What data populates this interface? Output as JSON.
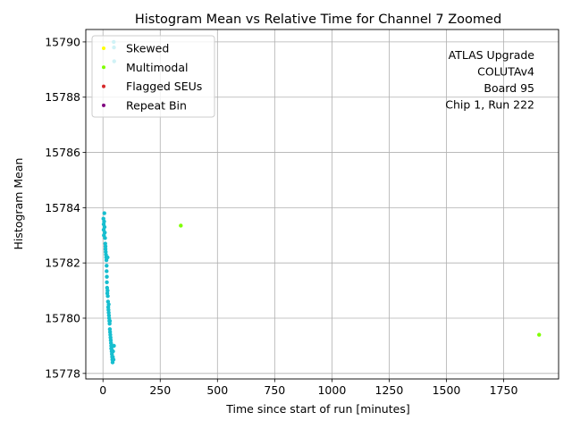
{
  "chart_data": {
    "type": "scatter",
    "title": "Histogram Mean vs Relative Time for Channel 7 Zoomed",
    "xlabel": "Time since start of run [minutes]",
    "ylabel": "Histogram Mean",
    "xlim": [
      -75,
      1990
    ],
    "ylim": [
      15777.8,
      15790.45
    ],
    "xticks": [
      0,
      250,
      500,
      750,
      1000,
      1250,
      1500,
      1750
    ],
    "yticks": [
      15778,
      15780,
      15782,
      15784,
      15786,
      15788,
      15790
    ],
    "grid": true,
    "legend_position": "top-left",
    "annotation": [
      "ATLAS Upgrade",
      "COLUTAv4",
      "Board 95",
      "Chip 1, Run 222"
    ],
    "colors": {
      "normal": "#17becf",
      "skewed": "#ffff00",
      "multimodal": "#7fff00",
      "flagged": "#d62728",
      "repeat": "#800080"
    },
    "series": [
      {
        "name": "Normal",
        "color": "#17becf",
        "points": [
          [
            2,
            15783.6
          ],
          [
            3,
            15783.4
          ],
          [
            3,
            15783.2
          ],
          [
            4,
            15783.0
          ],
          [
            5,
            15783.5
          ],
          [
            6,
            15783.8
          ],
          [
            7,
            15783.3
          ],
          [
            8,
            15783.1
          ],
          [
            9,
            15782.9
          ],
          [
            10,
            15782.7
          ],
          [
            11,
            15782.5
          ],
          [
            11,
            15782.6
          ],
          [
            12,
            15782.4
          ],
          [
            13,
            15782.3
          ],
          [
            14,
            15782.2
          ],
          [
            15,
            15782.1
          ],
          [
            16,
            15781.9
          ],
          [
            16,
            15781.7
          ],
          [
            17,
            15781.5
          ],
          [
            17,
            15781.3
          ],
          [
            18,
            15781.1
          ],
          [
            19,
            15780.9
          ],
          [
            20,
            15781.0
          ],
          [
            21,
            15780.8
          ],
          [
            22,
            15780.6
          ],
          [
            23,
            15780.4
          ],
          [
            24,
            15780.3
          ],
          [
            25,
            15780.2
          ],
          [
            26,
            15780.1
          ],
          [
            27,
            15780.0
          ],
          [
            28,
            15779.9
          ],
          [
            29,
            15779.8
          ],
          [
            30,
            15779.6
          ],
          [
            31,
            15779.5
          ],
          [
            32,
            15779.4
          ],
          [
            33,
            15779.3
          ],
          [
            34,
            15779.2
          ],
          [
            35,
            15779.1
          ],
          [
            36,
            15779.0
          ],
          [
            37,
            15778.9
          ],
          [
            38,
            15778.8
          ],
          [
            39,
            15778.7
          ],
          [
            40,
            15778.6
          ],
          [
            41,
            15778.5
          ],
          [
            42,
            15778.4
          ],
          [
            43,
            15778.6
          ],
          [
            44,
            15778.8
          ],
          [
            46,
            15778.5
          ],
          [
            48,
            15779.0
          ],
          [
            20,
            15782.2
          ],
          [
            25,
            15780.5
          ],
          [
            30,
            15779.9
          ],
          [
            36,
            15778.9
          ],
          [
            45,
            15779.0
          ],
          [
            47,
            15790.0
          ],
          [
            48,
            15789.8
          ],
          [
            49,
            15789.3
          ]
        ]
      },
      {
        "name": "Skewed",
        "color": "#ffff00",
        "points": []
      },
      {
        "name": "Multimodal",
        "color": "#7fff00",
        "points": [
          [
            340,
            15783.35
          ],
          [
            1905,
            15779.4
          ]
        ]
      },
      {
        "name": "Flagged SEUs",
        "color": "#d62728",
        "points": []
      },
      {
        "name": "Repeat Bin",
        "color": "#800080",
        "points": []
      }
    ],
    "legend": [
      {
        "label": "Skewed",
        "color": "#ffff00"
      },
      {
        "label": "Multimodal",
        "color": "#7fff00"
      },
      {
        "label": "Flagged SEUs",
        "color": "#d62728"
      },
      {
        "label": "Repeat Bin",
        "color": "#800080"
      }
    ]
  }
}
